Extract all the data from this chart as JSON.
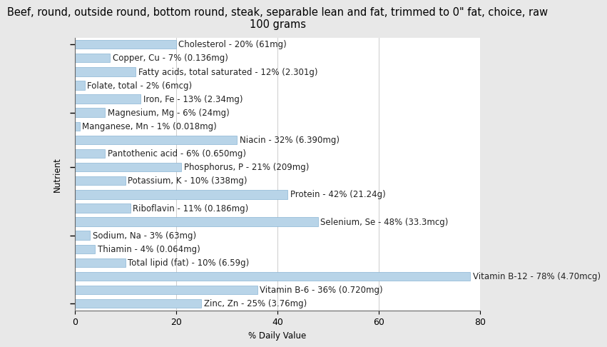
{
  "title": "Beef, round, outside round, bottom round, steak, separable lean and fat, trimmed to 0\" fat, choice, raw\n100 grams",
  "xlabel": "% Daily Value",
  "ylabel": "Nutrient",
  "nutrients": [
    "Cholesterol - 20% (61mg)",
    "Copper, Cu - 7% (0.136mg)",
    "Fatty acids, total saturated - 12% (2.301g)",
    "Folate, total - 2% (6mcg)",
    "Iron, Fe - 13% (2.34mg)",
    "Magnesium, Mg - 6% (24mg)",
    "Manganese, Mn - 1% (0.018mg)",
    "Niacin - 32% (6.390mg)",
    "Pantothenic acid - 6% (0.650mg)",
    "Phosphorus, P - 21% (209mg)",
    "Potassium, K - 10% (338mg)",
    "Protein - 42% (21.24g)",
    "Riboflavin - 11% (0.186mg)",
    "Selenium, Se - 48% (33.3mcg)",
    "Sodium, Na - 3% (63mg)",
    "Thiamin - 4% (0.064mg)",
    "Total lipid (fat) - 10% (6.59g)",
    "Vitamin B-12 - 78% (4.70mcg)",
    "Vitamin B-6 - 36% (0.720mg)",
    "Zinc, Zn - 25% (3.76mg)"
  ],
  "values": [
    20,
    7,
    12,
    2,
    13,
    6,
    1,
    32,
    6,
    21,
    10,
    42,
    11,
    48,
    3,
    4,
    10,
    78,
    36,
    25
  ],
  "tick_positions": [
    0,
    5,
    9,
    14,
    19
  ],
  "bar_color": "#b8d4e8",
  "bar_edge_color": "#8ab4d4",
  "background_color": "#e8e8e8",
  "plot_background_color": "#ffffff",
  "title_fontsize": 10.5,
  "label_fontsize": 8.5,
  "tick_fontsize": 9,
  "xlim": [
    0,
    80
  ],
  "xticks": [
    0,
    20,
    40,
    60,
    80
  ]
}
